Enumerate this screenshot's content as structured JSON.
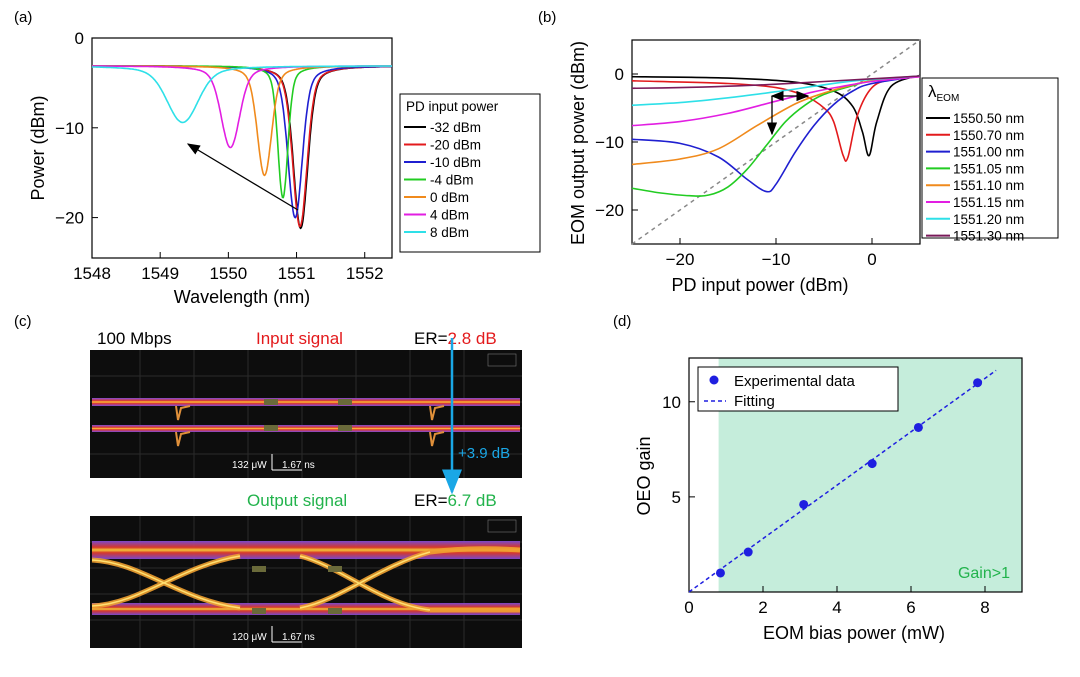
{
  "panels": {
    "a": {
      "tag": "(a)",
      "chart_data": {
        "type": "line",
        "xlabel": "Wavelength (nm)",
        "ylabel": "Power (dBm)",
        "xlim": [
          1548,
          1552.4
        ],
        "ylim": [
          -24.5,
          0
        ],
        "xticks": [
          1548,
          1549,
          1550,
          1551,
          1552
        ],
        "yticks": [
          0,
          -10,
          -20
        ],
        "legend_title": "PD input power",
        "series": [
          {
            "name": "-32 dBm",
            "color": "#000000",
            "dip_center": 1551.06,
            "dip_depth": -21.2,
            "width": 0.1
          },
          {
            "name": "-20 dBm",
            "color": "#e31a1c",
            "dip_center": 1551.05,
            "dip_depth": -21.0,
            "width": 0.1
          },
          {
            "name": "-10 dBm",
            "color": "#1f1fd0",
            "dip_center": 1550.98,
            "dip_depth": -20.0,
            "width": 0.1
          },
          {
            "name": "-4 dBm",
            "color": "#22cc22",
            "dip_center": 1550.8,
            "dip_depth": -17.8,
            "width": 0.07
          },
          {
            "name": "0 dBm",
            "color": "#f08a1c",
            "dip_center": 1550.53,
            "dip_depth": -15.3,
            "width": 0.1
          },
          {
            "name": "4 dBm",
            "color": "#e21ee2",
            "dip_center": 1550.03,
            "dip_depth": -12.2,
            "width": 0.13
          },
          {
            "name": "8 dBm",
            "color": "#2ee0e8",
            "dip_center": 1549.33,
            "dip_depth": -9.4,
            "width": 0.22
          }
        ],
        "baseline": -3.1,
        "annotation": "arrow from 1550.95,-19.5 to 1549.6,-8.8"
      }
    },
    "b": {
      "tag": "(b)",
      "chart_data": {
        "type": "line",
        "xlabel": "PD input power (dBm)",
        "ylabel": "EOM output power (dBm)",
        "xlim": [
          -25,
          5
        ],
        "ylim": [
          -25,
          5
        ],
        "xticks": [
          -20,
          -10,
          0
        ],
        "yticks": [
          0,
          -10,
          -20
        ],
        "legend_title": "λ",
        "legend_title_sub": "EOM",
        "series": [
          {
            "name": "1550.50 nm",
            "color": "#000000",
            "x": [
              -25,
              -15,
              -8,
              -4,
              -2,
              -1,
              -0.3,
              0.5,
              2,
              5
            ],
            "y": [
              -0.4,
              -0.6,
              -1.2,
              -2.5,
              -4.8,
              -8.5,
              -12.0,
              -7.0,
              -1.8,
              -0.2
            ]
          },
          {
            "name": "1550.70 nm",
            "color": "#e31a1c",
            "x": [
              -25,
              -15,
              -10,
              -7,
              -5,
              -4,
              -3,
              -2.5,
              -1.5,
              0,
              2,
              5
            ],
            "y": [
              -1.0,
              -1.4,
              -2.0,
              -3.2,
              -5.0,
              -7.0,
              -12.0,
              -12.2,
              -6.0,
              -2.0,
              -0.8,
              -0.3
            ]
          },
          {
            "name": "1551.00 nm",
            "color": "#1f1fd0",
            "x": [
              -25,
              -20,
              -16,
              -13,
              -11,
              -10,
              -8,
              -6,
              -4,
              -2,
              0,
              5
            ],
            "y": [
              -9.6,
              -10.2,
              -12.2,
              -15.5,
              -17.3,
              -16.2,
              -11.5,
              -7.5,
              -4.5,
              -2.5,
              -1.4,
              -0.3
            ]
          },
          {
            "name": "1551.05 nm",
            "color": "#22cc22",
            "x": [
              -25,
              -22,
              -19,
              -17,
              -15,
              -13,
              -11,
              -9,
              -7,
              -5,
              -2,
              0,
              5
            ],
            "y": [
              -16.8,
              -17.5,
              -17.9,
              -17.8,
              -16.6,
              -14.0,
              -10.5,
              -7.0,
              -4.6,
              -3.0,
              -1.7,
              -1.0,
              -0.3
            ]
          },
          {
            "name": "1551.10 nm",
            "color": "#f08a1c",
            "x": [
              -25,
              -20,
              -16,
              -12,
              -8,
              -5,
              -2,
              0,
              5
            ],
            "y": [
              -13.3,
              -12.5,
              -11.0,
              -7.6,
              -4.4,
              -2.8,
              -1.6,
              -1.0,
              -0.4
            ]
          },
          {
            "name": "1551.15 nm",
            "color": "#e21ee2",
            "x": [
              -25,
              -20,
              -15,
              -10,
              -6,
              -3,
              0,
              5
            ],
            "y": [
              -7.6,
              -7.0,
              -5.8,
              -4.0,
              -2.6,
              -1.8,
              -1.1,
              -0.4
            ]
          },
          {
            "name": "1551.20 nm",
            "color": "#2ee0e8",
            "x": [
              -25,
              -20,
              -15,
              -10,
              -6,
              -3,
              0,
              5
            ],
            "y": [
              -4.6,
              -4.2,
              -3.5,
              -2.6,
              -1.8,
              -1.2,
              -0.8,
              -0.3
            ]
          },
          {
            "name": "1551.30 nm",
            "color": "#7a1a5a",
            "x": [
              -25,
              -20,
              -15,
              -10,
              -5,
              0,
              5
            ],
            "y": [
              -2.1,
              -2.0,
              -1.8,
              -1.5,
              -1.1,
              -0.7,
              -0.3
            ]
          }
        ],
        "reference_line": "y = x (dashed grey)",
        "annotation": "double arrow near x=-10 and x=-6, arrow down at x=-10"
      }
    },
    "c": {
      "tag": "(c)",
      "bitrate": "100 Mbps",
      "input_title": "Input signal",
      "input_er_prefix": "ER=",
      "input_er_value": "2.8 dB",
      "gain_label": "+3.9 dB",
      "input_scale_power": "132 μW",
      "input_scale_time": "1.67 ns",
      "output_title": "Output signal",
      "output_er_prefix": "ER=",
      "output_er_value": "6.7 dB",
      "output_scale_power": "120 μW",
      "output_scale_time": "1.67 ns"
    },
    "d": {
      "tag": "(d)",
      "chart_data": {
        "type": "scatter",
        "xlabel": "EOM bias power (mW)",
        "ylabel": "OEO gain",
        "xlim": [
          0,
          9
        ],
        "ylim": [
          0,
          12.3
        ],
        "xticks": [
          0,
          2,
          4,
          6,
          8
        ],
        "yticks": [
          5,
          10
        ],
        "series": [
          {
            "name": "Experimental data",
            "color": "#1f1fe0",
            "x": [
              0.85,
              1.6,
              3.1,
              4.95,
              6.2,
              7.8
            ],
            "y": [
              1.0,
              2.1,
              4.6,
              6.75,
              8.65,
              11.0
            ]
          },
          {
            "name": "Fitting",
            "color": "#1f1fe0",
            "style": "dashed",
            "x": [
              0,
              8.3
            ],
            "y": [
              0,
              11.65
            ]
          }
        ],
        "shaded_region": {
          "x_from": 0.8,
          "x_to": 9,
          "color": "#c5eddb",
          "label": "Gain>1",
          "label_color": "#22b34c"
        }
      }
    }
  }
}
